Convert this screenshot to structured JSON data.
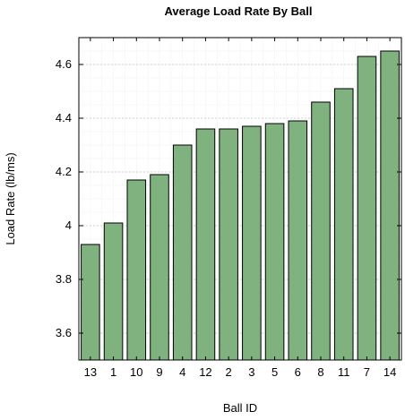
{
  "chart_data": {
    "type": "bar",
    "title": "Average Load Rate By Ball",
    "xlabel": "Ball ID",
    "ylabel": "Load Rate (lb/ms)",
    "categories": [
      "13",
      "1",
      "10",
      "9",
      "4",
      "12",
      "2",
      "3",
      "5",
      "6",
      "8",
      "11",
      "7",
      "14"
    ],
    "values": [
      3.93,
      4.01,
      4.17,
      4.19,
      4.3,
      4.36,
      4.36,
      4.37,
      4.38,
      4.39,
      4.46,
      4.51,
      4.63,
      4.65
    ],
    "ylim": [
      3.5,
      4.7
    ],
    "yticks": [
      3.6,
      3.8,
      4.0,
      4.2,
      4.4,
      4.6
    ],
    "ytick_labels": [
      "3.6",
      "3.8",
      "4",
      "4.2",
      "4.4",
      "4.6"
    ],
    "grid": true,
    "minor_grid": true,
    "legend": "none",
    "colors": {
      "bar_fill": "#7fb27f",
      "bar_stroke": "#000000",
      "grid_major": "#c8c8c8",
      "grid_minor": "#e6e6e6",
      "frame": "#000000"
    }
  }
}
